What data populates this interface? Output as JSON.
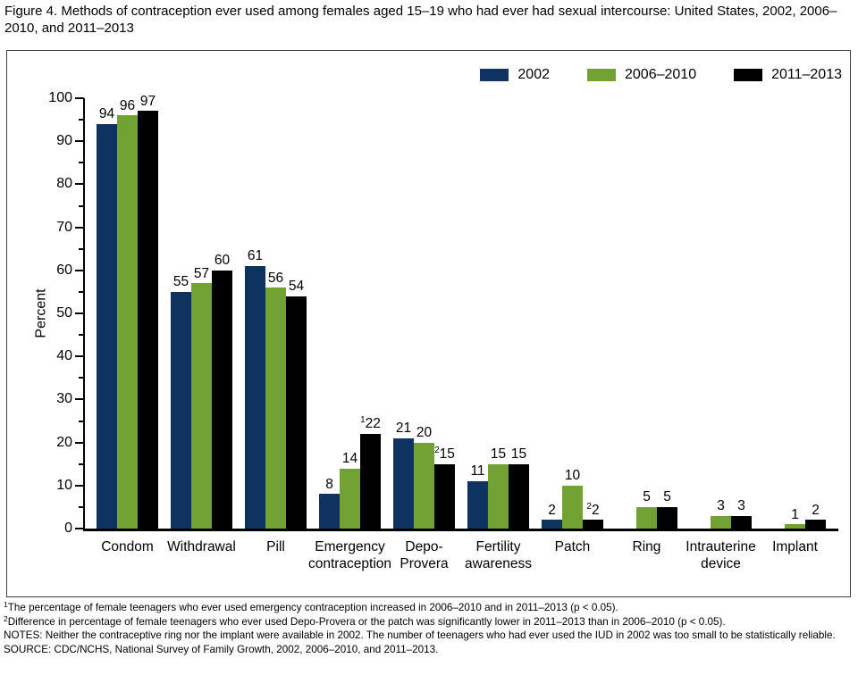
{
  "figure_title": "Figure 4. Methods of contraception ever used among females aged 15–19 who had ever had sexual intercourse: United States, 2002, 2006–2010, and 2011–2013",
  "chart_data": {
    "type": "bar",
    "title": "Methods of contraception ever used among females aged 15–19 who had ever had sexual intercourse",
    "ylabel": "Percent",
    "ylim": [
      0,
      100
    ],
    "ytick_major_step": 10,
    "ytick_minor_step": 5,
    "grid": "off",
    "legend_position": "top-right-inside",
    "categories": [
      "Condom",
      "Withdrawal",
      "Pill",
      "Emergency\ncontraception",
      "Depo-\nProvera",
      "Fertility\nawareness",
      "Patch",
      "Ring",
      "Intrauterine\ndevice",
      "Implant"
    ],
    "series": [
      {
        "name": "2002",
        "color": "#0f3361",
        "values": [
          94,
          55,
          61,
          8,
          21,
          11,
          2,
          null,
          null,
          null
        ],
        "sups": [
          null,
          null,
          null,
          null,
          null,
          null,
          null,
          null,
          null,
          null
        ]
      },
      {
        "name": "2006–2010",
        "color": "#72a233",
        "values": [
          96,
          57,
          56,
          14,
          20,
          15,
          10,
          5,
          3,
          1
        ],
        "sups": [
          null,
          null,
          null,
          null,
          null,
          null,
          null,
          null,
          null,
          null
        ]
      },
      {
        "name": "2011–2013",
        "color": "#000000",
        "values": [
          97,
          60,
          54,
          22,
          15,
          15,
          2,
          5,
          3,
          2
        ],
        "sups": [
          null,
          null,
          null,
          "1",
          "2",
          null,
          "2",
          null,
          null,
          null
        ]
      }
    ]
  },
  "footnotes": [
    {
      "sup": "1",
      "text": "The percentage of female teenagers who ever used emergency contraception increased in 2006–2010 and in 2011–2013 (p < 0.05)."
    },
    {
      "sup": "2",
      "text": "Difference in percentage of female teenagers who ever used Depo-Provera or the patch was significantly lower in 2011–2013 than in 2006–2010 (p < 0.05)."
    },
    {
      "sup": "",
      "text": "NOTES: Neither the contraceptive ring nor the implant were available in 2002. The number of teenagers who had ever used the IUD in 2002 was too small to be statistically reliable."
    },
    {
      "sup": "",
      "text": "SOURCE: CDC/NCHS, National Survey of Family Growth, 2002, 2006–2010, and 2011–2013."
    }
  ]
}
